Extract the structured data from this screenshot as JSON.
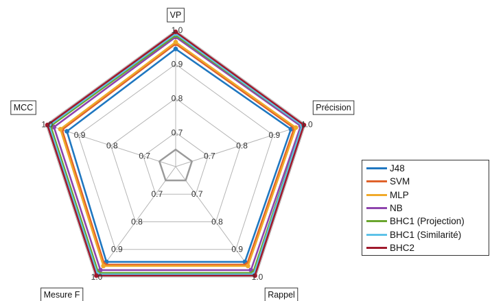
{
  "chart_data": {
    "type": "radar",
    "axes": [
      "VP",
      "Précision",
      "Rappel",
      "Mesure F",
      "MCC"
    ],
    "rlim": [
      0.6,
      1.0
    ],
    "ring_ticks": [
      0.7,
      0.8,
      0.9,
      1.0
    ],
    "ring_tick_labels": [
      "0.7",
      "0.8",
      "0.9",
      "1.0"
    ],
    "grid": true,
    "legend_position": "right",
    "series": [
      {
        "name": "J48",
        "color": "#1f77c0",
        "values": [
          0.945,
          0.955,
          0.945,
          0.945,
          0.935
        ]
      },
      {
        "name": "SVM",
        "color": "#e0622a",
        "values": [
          0.96,
          0.965,
          0.955,
          0.955,
          0.95
        ]
      },
      {
        "name": "MLP",
        "color": "#f0a92a",
        "values": [
          0.965,
          0.97,
          0.96,
          0.96,
          0.955
        ]
      },
      {
        "name": "NB",
        "color": "#8e44ad",
        "values": [
          0.98,
          0.985,
          0.975,
          0.975,
          0.975
        ]
      },
      {
        "name": "BHC1 (Projection)",
        "color": "#6aa52e",
        "values": [
          0.985,
          0.99,
          0.985,
          0.985,
          0.985
        ]
      },
      {
        "name": "BHC1 (Similarité)",
        "color": "#5dc2e8",
        "values": [
          0.99,
          0.99,
          0.99,
          0.99,
          0.99
        ]
      },
      {
        "name": "BHC2",
        "color": "#a0192c",
        "values": [
          0.995,
          0.995,
          0.995,
          0.995,
          0.995
        ]
      }
    ]
  }
}
